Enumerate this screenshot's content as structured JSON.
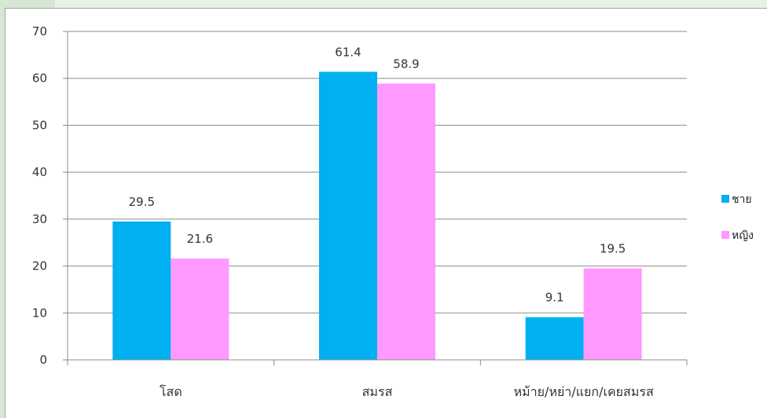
{
  "chart_data": {
    "type": "bar",
    "title": "",
    "xlabel": "",
    "ylabel": "",
    "categories": [
      "โสด",
      "สมรส",
      "หม้าย/หย่า/แยก/เคยสมรส"
    ],
    "series": [
      {
        "name": "ชาย",
        "values": [
          29.5,
          61.4,
          9.1
        ],
        "color": "#00b0f0"
      },
      {
        "name": "หญิง",
        "values": [
          21.6,
          58.9,
          19.5
        ],
        "color": "#ff99ff"
      }
    ],
    "ylim": [
      0,
      70
    ],
    "yticks": [
      0,
      10,
      20,
      30,
      40,
      50,
      60,
      70
    ],
    "grid": true,
    "legend_position": "right",
    "data_labels": true
  }
}
